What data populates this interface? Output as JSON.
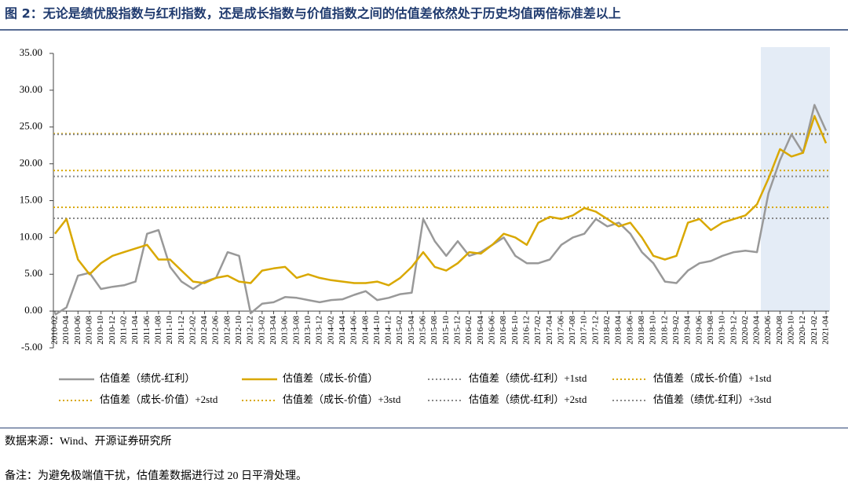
{
  "title": "图 2：无论是绩优股指数与红利指数，还是成长指数与价值指数之间的估值差依然处于历史均值两倍标准差以上",
  "source": "数据来源：Wind、开源证券研究所",
  "note": "备注：为避免极端值干扰，估值差数据进行过 20 日平滑处理。",
  "chart_data": {
    "type": "line",
    "categories": [
      "2010-02",
      "2010-04",
      "2010-06",
      "2010-08",
      "2010-10",
      "2010-12",
      "2011-02",
      "2011-04",
      "2011-06",
      "2011-08",
      "2011-10",
      "2011-12",
      "2012-02",
      "2012-04",
      "2012-06",
      "2012-08",
      "2012-10",
      "2012-12",
      "2013-02",
      "2013-04",
      "2013-06",
      "2013-08",
      "2013-10",
      "2013-12",
      "2014-02",
      "2014-04",
      "2014-06",
      "2014-08",
      "2014-10",
      "2014-12",
      "2015-02",
      "2015-04",
      "2015-06",
      "2015-08",
      "2015-10",
      "2015-12",
      "2016-02",
      "2016-04",
      "2016-06",
      "2016-08",
      "2016-10",
      "2016-12",
      "2017-02",
      "2017-04",
      "2017-06",
      "2017-08",
      "2017-10",
      "2017-12",
      "2018-02",
      "2018-04",
      "2018-06",
      "2018-08",
      "2018-10",
      "2018-12",
      "2019-02",
      "2019-04",
      "2019-06",
      "2019-08",
      "2019-10",
      "2019-12",
      "2020-02",
      "2020-04",
      "2020-06",
      "2020-08",
      "2020-10",
      "2020-12",
      "2021-02",
      "2021-04"
    ],
    "series": [
      {
        "name": "估值差（绩优-红利）",
        "color": "#999999",
        "values": [
          -0.5,
          0.5,
          4.8,
          5.2,
          3.0,
          3.3,
          3.5,
          4.0,
          10.5,
          11.0,
          6.0,
          4.0,
          3.0,
          4.0,
          4.5,
          8.0,
          7.5,
          -0.3,
          1.0,
          1.2,
          1.9,
          1.8,
          1.5,
          1.2,
          1.5,
          1.6,
          2.2,
          2.7,
          1.5,
          1.8,
          2.3,
          2.5,
          12.5,
          9.5,
          7.5,
          9.5,
          7.5,
          8.0,
          9.0,
          10.0,
          7.5,
          6.5,
          6.5,
          7.0,
          9.0,
          10.0,
          10.5,
          12.5,
          11.5,
          12.0,
          10.5,
          8.0,
          6.5,
          4.0,
          3.8,
          5.5,
          6.5,
          6.8,
          7.5,
          8.0,
          8.2,
          8.0,
          16.0,
          20.5,
          24.0,
          21.5,
          28.0,
          24.5
        ]
      },
      {
        "name": "估值差（成长-价值）",
        "color": "#d9a800",
        "values": [
          10.5,
          12.5,
          7.0,
          5.0,
          6.5,
          7.5,
          8.0,
          8.5,
          9.0,
          7.0,
          7.0,
          5.5,
          4.0,
          3.8,
          4.5,
          4.8,
          4.0,
          3.8,
          5.5,
          5.8,
          6.0,
          4.5,
          5.0,
          4.5,
          4.2,
          4.0,
          3.8,
          3.8,
          4.0,
          3.5,
          4.5,
          6.0,
          8.0,
          6.0,
          5.5,
          6.5,
          8.0,
          7.8,
          9.0,
          10.5,
          10.0,
          9.0,
          12.0,
          12.8,
          12.5,
          13.0,
          14.0,
          13.5,
          12.5,
          11.5,
          12.0,
          10.0,
          7.5,
          7.0,
          7.5,
          12.0,
          12.5,
          11.0,
          12.0,
          12.5,
          13.0,
          14.5,
          18.0,
          22.0,
          21.0,
          21.5,
          26.5,
          22.8
        ]
      }
    ],
    "reference_lines": [
      {
        "name": "估值差（绩优-红利）+1std",
        "color": "#888888",
        "value": 12.6
      },
      {
        "name": "估值差（成长-价值）+1std",
        "color": "#d9a800",
        "value": 14.1
      },
      {
        "name": "估值差（成长-价值）+2std",
        "color": "#d9a800",
        "value": 19.1
      },
      {
        "name": "估值差（成长-价值）+3std",
        "color": "#d9a800",
        "value": 24.1
      },
      {
        "name": "估值差（绩优-红利）+2std",
        "color": "#888888",
        "value": 18.3
      },
      {
        "name": "估值差（绩优-红利）+3std",
        "color": "#888888",
        "value": 24.0
      }
    ],
    "ylim": [
      -5,
      35
    ],
    "yticks": [
      {
        "value": 35,
        "label": "35.00"
      },
      {
        "value": 30,
        "label": "30.00"
      },
      {
        "value": 25,
        "label": "25.00"
      },
      {
        "value": 20,
        "label": "20.00"
      },
      {
        "value": 15,
        "label": "15.00"
      },
      {
        "value": 10,
        "label": "10.00"
      },
      {
        "value": 5,
        "label": "5.00"
      },
      {
        "value": 0,
        "label": "0.00"
      },
      {
        "value": -5,
        "label": "-5.00"
      }
    ]
  }
}
